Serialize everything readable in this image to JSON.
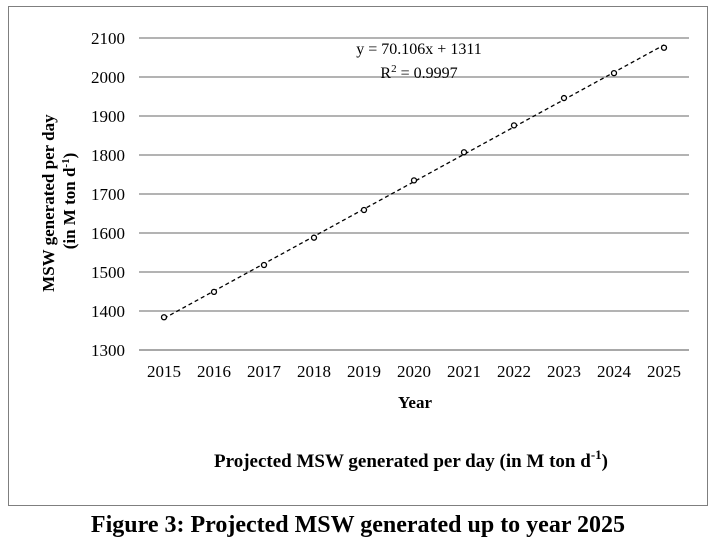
{
  "chart_data": {
    "type": "scatter",
    "title": "Projected MSW generated per day (in M ton d",
    "title_sup": "-1",
    "title_suffix": ")",
    "xlabel": "Year",
    "ylabel_line1": "MSW generated per day",
    "ylabel_line2": "(in M ton d",
    "ylabel_sup": "-1",
    "ylabel_suffix": ")",
    "categories": [
      "2015",
      "2016",
      "2017",
      "2018",
      "2019",
      "2020",
      "2021",
      "2022",
      "2023",
      "2024",
      "2025"
    ],
    "values": [
      1384,
      1449,
      1518,
      1588,
      1659,
      1735,
      1807,
      1876,
      1946,
      2010,
      2075
    ],
    "ylim": [
      1300,
      2100
    ],
    "yticks": [
      1300,
      1400,
      1500,
      1600,
      1700,
      1800,
      1900,
      2000,
      2100
    ],
    "grid": true,
    "trendline": {
      "type": "linear",
      "slope": 70.106,
      "intercept": 1311,
      "style": "dashed"
    },
    "equation_text": "y = 70.106x + 1311",
    "r2_prefix": "R",
    "r2_sup": "2",
    "r2_suffix": " = 0.9997"
  },
  "figure": {
    "caption": "Figure 3: Projected MSW generated up to year 2025"
  }
}
